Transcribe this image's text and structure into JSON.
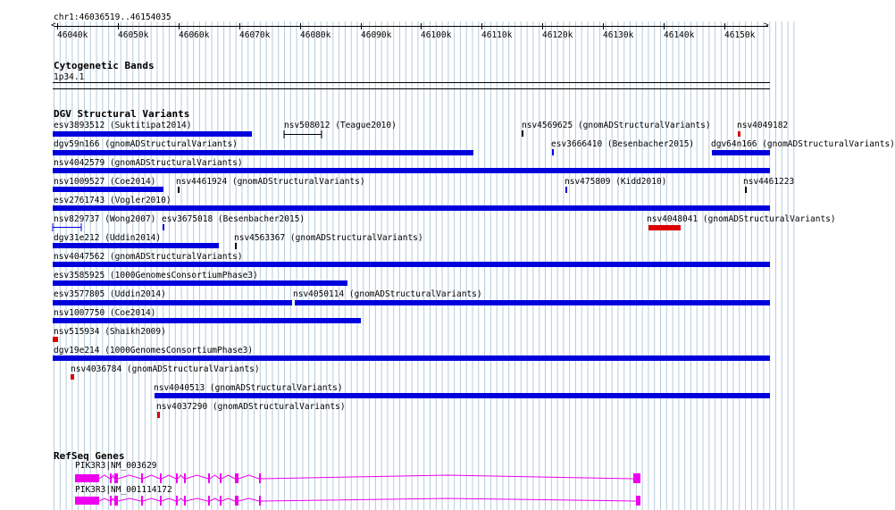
{
  "location": "chr1:46036519..46154035",
  "ruler": {
    "ticks": [
      "46040k",
      "46050k",
      "46060k",
      "46070k",
      "46080k",
      "46090k",
      "46100k",
      "46110k",
      "46120k",
      "46130k",
      "46140k",
      "46150k"
    ]
  },
  "tracks": {
    "cytobands": {
      "title": "Cytogenetic Bands",
      "band": "1p34.1"
    },
    "dgv": {
      "title": "DGV Structural Variants",
      "features": [
        {
          "label": "esv3893512 (Suktitipat2014)",
          "color": "#0000dd"
        },
        {
          "label": "nsv508012 (Teague2010)",
          "color": "#000000"
        },
        {
          "label": "nsv4569625 (gnomADStructuralVariants)",
          "color": "#000000"
        },
        {
          "label": "nsv4049182",
          "color": "#dd0000"
        },
        {
          "label": "dgv59n166 (gnomADStructuralVariants)",
          "color": "#0000dd"
        },
        {
          "label": "esv3666410 (Besenbacher2015)",
          "color": "#0000dd"
        },
        {
          "label": "dgv64n166 (gnomADStructuralVariants)",
          "color": "#0000dd"
        },
        {
          "label": "nsv4042579 (gnomADStructuralVariants)",
          "color": "#0000dd"
        },
        {
          "label": "nsv1009527 (Coe2014)",
          "color": "#0000dd"
        },
        {
          "label": "nsv4461924 (gnomADStructuralVariants)",
          "color": "#000000"
        },
        {
          "label": "nsv475809 (Kidd2010)",
          "color": "#0000dd"
        },
        {
          "label": "nsv4461223",
          "color": "#000000"
        },
        {
          "label": "esv2761743 (Vogler2010)",
          "color": "#0000dd"
        },
        {
          "label": "nsv829737 (Wong2007)",
          "color": "#0000dd"
        },
        {
          "label": "esv3675018 (Besenbacher2015)",
          "color": "#0000dd"
        },
        {
          "label": "nsv4048041 (gnomADStructuralVariants)",
          "color": "#dd0000"
        },
        {
          "label": "dgv31e212 (Uddin2014)",
          "color": "#0000dd"
        },
        {
          "label": "nsv4563367 (gnomADStructuralVariants)",
          "color": "#000000"
        },
        {
          "label": "nsv4047562 (gnomADStructuralVariants)",
          "color": "#0000dd"
        },
        {
          "label": "esv3585925 (1000GenomesConsortiumPhase3)",
          "color": "#0000dd"
        },
        {
          "label": "esv3577805 (Uddin2014)",
          "color": "#0000dd"
        },
        {
          "label": "nsv4050114 (gnomADStructuralVariants)",
          "color": "#0000dd"
        },
        {
          "label": "nsv1007750 (Coe2014)",
          "color": "#0000dd"
        },
        {
          "label": "nsv515934 (Shaikh2009)",
          "color": "#dd0000"
        },
        {
          "label": "dgv19e214 (1000GenomesConsortiumPhase3)",
          "color": "#0000dd"
        },
        {
          "label": "nsv4036784 (gnomADStructuralVariants)",
          "color": "#dd0000"
        },
        {
          "label": "nsv4040513 (gnomADStructuralVariants)",
          "color": "#0000dd"
        },
        {
          "label": "nsv4037290 (gnomADStructuralVariants)",
          "color": "#dd0000"
        }
      ]
    },
    "refseq": {
      "title": "RefSeq Genes",
      "genes": [
        {
          "label": "PIK3R3|NM_003629",
          "color": "#ee00ee"
        },
        {
          "label": "PIK3R3|NM_001114172",
          "color": "#ee00ee"
        }
      ]
    }
  },
  "colors": {
    "gridline": "#b4ccdc",
    "gain": "#0000dd",
    "loss": "#dd0000",
    "gene": "#ee00ee"
  }
}
